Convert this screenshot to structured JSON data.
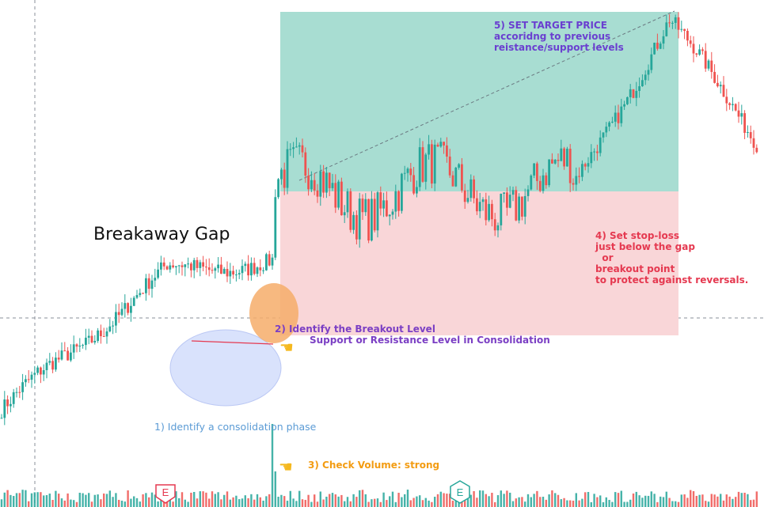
{
  "title": "Breakaway Gap",
  "annotations": {
    "step1": "1) Identify a consolidation phase",
    "step2": "2) Identify the Breakout Level",
    "step2_sub": "Support or Resistance Level in Consolidation",
    "step3": "3) Check Volume: strong",
    "step4": "4) Set stop-loss\njust below the gap\n  or\nbreakout point\nto protect against reversals.",
    "step5": "5) SET TARGET PRICE\naccoridng to previous\nreistance/support levels"
  },
  "markers": {
    "earnings_1": "E",
    "earnings_2": "E"
  },
  "colors": {
    "up": "#26a69a",
    "down": "#ef5350",
    "target_zone": "#a8ddd2",
    "stop_zone": "#f9d6d8",
    "consolidation": "#c9d6fb",
    "breakout_circle": "#f6ad6a",
    "step1": "#5b9bd5",
    "step2": "#7b3fc4",
    "step3": "#f39c12",
    "step4": "#e53950",
    "step5": "#6a3fd0"
  },
  "chart_data": {
    "type": "candlestick",
    "description_axes": "no visible axis labels",
    "phases": [
      {
        "name": "uptrend",
        "start": 0,
        "end": 55,
        "from": 0.14,
        "to": 0.44
      },
      {
        "name": "consolidation",
        "start": 55,
        "end": 90,
        "from": 0.44,
        "to": 0.46
      },
      {
        "name": "gap",
        "start": 90,
        "end": 91,
        "from": 0.46,
        "to": 0.61
      },
      {
        "name": "range",
        "start": 91,
        "end": 190,
        "from": 0.61,
        "to": 0.62
      },
      {
        "name": "rally",
        "start": 190,
        "end": 222,
        "from": 0.62,
        "to": 0.98
      },
      {
        "name": "pullback",
        "start": 222,
        "end": 252,
        "from": 0.98,
        "to": 0.72
      }
    ],
    "candle_count": 252,
    "volume": "spike at breakout candle"
  }
}
